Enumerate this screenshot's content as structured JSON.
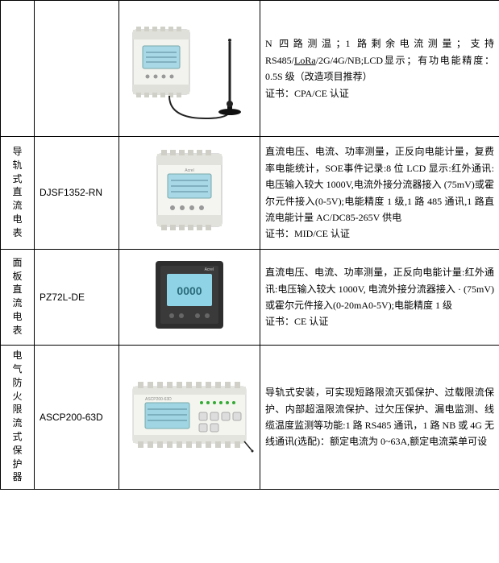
{
  "rows": [
    {
      "category": "",
      "model": "",
      "desc_html": "N 四路测温；1 路剩余电流测量；支持RS485/<span class='underline'>LoRa</span>/2G/4G/NB;LCD显示；有功电能精度：0.5S 级（改造项目推荐）<br>证书：CPA/CE 认证",
      "image": "din_meter_antenna"
    },
    {
      "category": "导轨式直流电表",
      "model": "DJSF1352-RN",
      "desc_html": "直流电压、电流、功率测量，正反向电能计量，复费率电能统计，SOE事件记录:8 位 LCD 显示:红外通讯:电压输入较大 1000V,电流外接分流器接入 (75mV)或霍尔元件接入(0-5V);电能精度 1 级,1 路 485 通讯,1 路直流电能计量 AC/DC85-265V 供电<br>证书：MID/CE 认证",
      "image": "din_meter_dc"
    },
    {
      "category": "面板直流电表",
      "model": "PZ72L-DE",
      "desc_html": "直流电压、电流、功率测量，正反向电能计量:红外通讯:电压输入较大 1000V, 电流外接分流器接入 · (75mV) 或霍尔元件接入(0-20mA0-5V);电能精度 1 级<br>证书：CE 认证",
      "image": "panel_meter"
    },
    {
      "category": "电气防火限流式保护器",
      "model": "ASCP200-63D",
      "desc_html": "导轨式安装，可实现短路限流灭弧保护、过载限流保护、内部超温限流保护、过欠压保护、漏电监测、线缆温度监测等功能:1 路 RS485 通讯，1 路 NB 或 4G 无线通讯(选配)：额定电流为 0~63A,额定电流菜单可设",
      "image": "protector"
    }
  ],
  "colors": {
    "device_body": "#f5f5f0",
    "device_gray": "#d8d8d4",
    "device_dark": "#3a3a3a",
    "lcd": "#9fd8e8",
    "lcd_panel": "#5a7a8a",
    "border": "#888888"
  }
}
